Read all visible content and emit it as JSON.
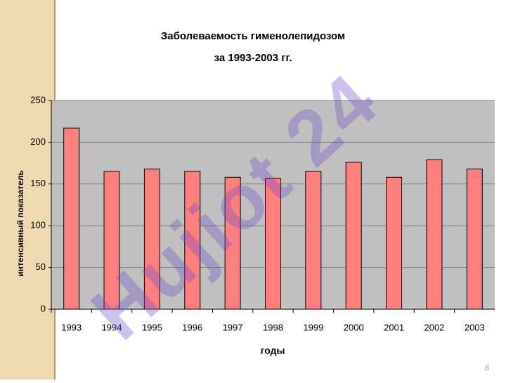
{
  "chart_data": {
    "type": "bar",
    "title": [
      "Заболеваемость гименолепидозом",
      "за 1993-2003 гг."
    ],
    "xlabel": "годы",
    "ylabel": "интенсивный показатель",
    "categories": [
      "1993",
      "1994",
      "1995",
      "1996",
      "1997",
      "1998",
      "1999",
      "2000",
      "2001",
      "2002",
      "2003"
    ],
    "values": [
      217,
      165,
      168,
      165,
      158,
      157,
      165,
      176,
      158,
      179,
      168
    ],
    "color": "#ff7f7f",
    "ylim": [
      0,
      250
    ],
    "yticks": [
      0,
      50,
      100,
      150,
      200,
      250
    ],
    "grid": true
  },
  "watermark": "Hujiot 24",
  "page_number": "8"
}
